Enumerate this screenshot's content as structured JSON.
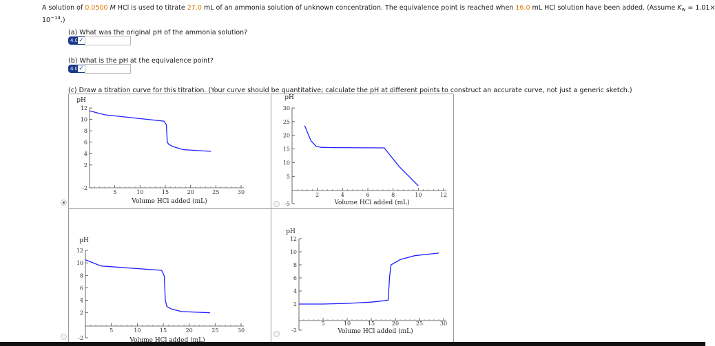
{
  "problem": {
    "p1": "A solution of",
    "hcl_conc": "0.0500",
    "p2": "M",
    "p3": "HCl is used to titrate",
    "vol_titrated": "27.0",
    "p4": "mL of an ammonia solution of unknown concentration. The equivalence point is reached when",
    "vol_eq": "16.0",
    "p5": "mL HCl solution have been added. (Assume",
    "kw_k": "K",
    "kw_sub": "w",
    "kw_val": "= 1.01×",
    "p6_base": "10",
    "p6_exp": "−14",
    "p6_end": ".)"
  },
  "part_a": {
    "question": "(a) What was the original pH of the ammonia solution?",
    "badge": "4.0",
    "check": "✓",
    "value": ""
  },
  "part_b": {
    "question": "(b) What is the pH at the equivalence point?",
    "badge": "4.0",
    "check": "✓",
    "value": ""
  },
  "part_c": {
    "question": "(c) Draw a titration curve for this titration. (Your curve should be quantitative; calculate the pH at different points to construct an accurate curve, not just a generic sketch.)"
  },
  "line_color": "#1f1fff",
  "chart_data": [
    {
      "type": "line",
      "ylabel": "pH",
      "xlabel": "Volume HCl added (mL)",
      "xlim": [
        0,
        30
      ],
      "ylim": [
        -2,
        12
      ],
      "x_ticks": [
        5,
        10,
        15,
        20,
        25,
        30
      ],
      "y_ticks": [
        -2,
        2,
        4,
        6,
        8,
        10,
        12
      ],
      "series": [
        {
          "x": [
            0,
            3,
            14.7,
            15.2,
            15.4,
            15.7,
            16.6,
            18.5,
            24
          ],
          "y": [
            11.5,
            10.8,
            9.7,
            9.1,
            6.0,
            5.6,
            5.2,
            4.7,
            4.4
          ]
        }
      ],
      "selected": true
    },
    {
      "type": "line",
      "ylabel": "pH",
      "xlabel": "Volume HCl added (mL)",
      "xlim": [
        0,
        12
      ],
      "ylim": [
        -5,
        30
      ],
      "x_ticks": [
        2,
        4,
        6,
        8,
        10,
        12
      ],
      "y_ticks": [
        -5,
        5,
        10,
        15,
        20,
        25,
        30
      ],
      "series": [
        {
          "x": [
            1,
            1.5,
            1.9,
            2.3,
            3.2,
            7.3,
            8.5,
            10
          ],
          "y": [
            23.5,
            18,
            16,
            15.6,
            15.5,
            15.4,
            8.5,
            1.5
          ]
        }
      ],
      "selected": false
    },
    {
      "type": "line",
      "ylabel": "pH",
      "xlabel": "Volume HCl added (mL)",
      "xlim": [
        0,
        30
      ],
      "ylim": [
        -2,
        12
      ],
      "x_ticks": [
        5,
        10,
        15,
        20,
        25,
        30
      ],
      "y_ticks": [
        -2,
        2,
        4,
        6,
        8,
        10,
        12
      ],
      "series": [
        {
          "x": [
            0,
            3,
            14.7,
            15.2,
            15.4,
            15.7,
            16.6,
            18.5,
            24
          ],
          "y": [
            10.5,
            9.5,
            8.8,
            7.9,
            4.0,
            3.0,
            2.6,
            2.2,
            2.0
          ]
        }
      ],
      "selected": false
    },
    {
      "type": "line",
      "ylabel": "pH",
      "xlabel": "Volume HCl added (mL)",
      "xlim": [
        0,
        30
      ],
      "ylim": [
        -2,
        12
      ],
      "x_ticks": [
        5,
        10,
        15,
        20,
        25,
        30
      ],
      "y_ticks": [
        -2,
        2,
        4,
        6,
        8,
        10,
        12
      ],
      "series": [
        {
          "x": [
            0,
            5,
            10,
            15,
            17.5,
            18.5,
            18.8,
            19.1,
            21,
            24,
            29
          ],
          "y": [
            2.0,
            2.0,
            2.1,
            2.3,
            2.5,
            2.6,
            6.2,
            8.0,
            8.8,
            9.4,
            9.8
          ]
        }
      ],
      "selected": false
    }
  ]
}
